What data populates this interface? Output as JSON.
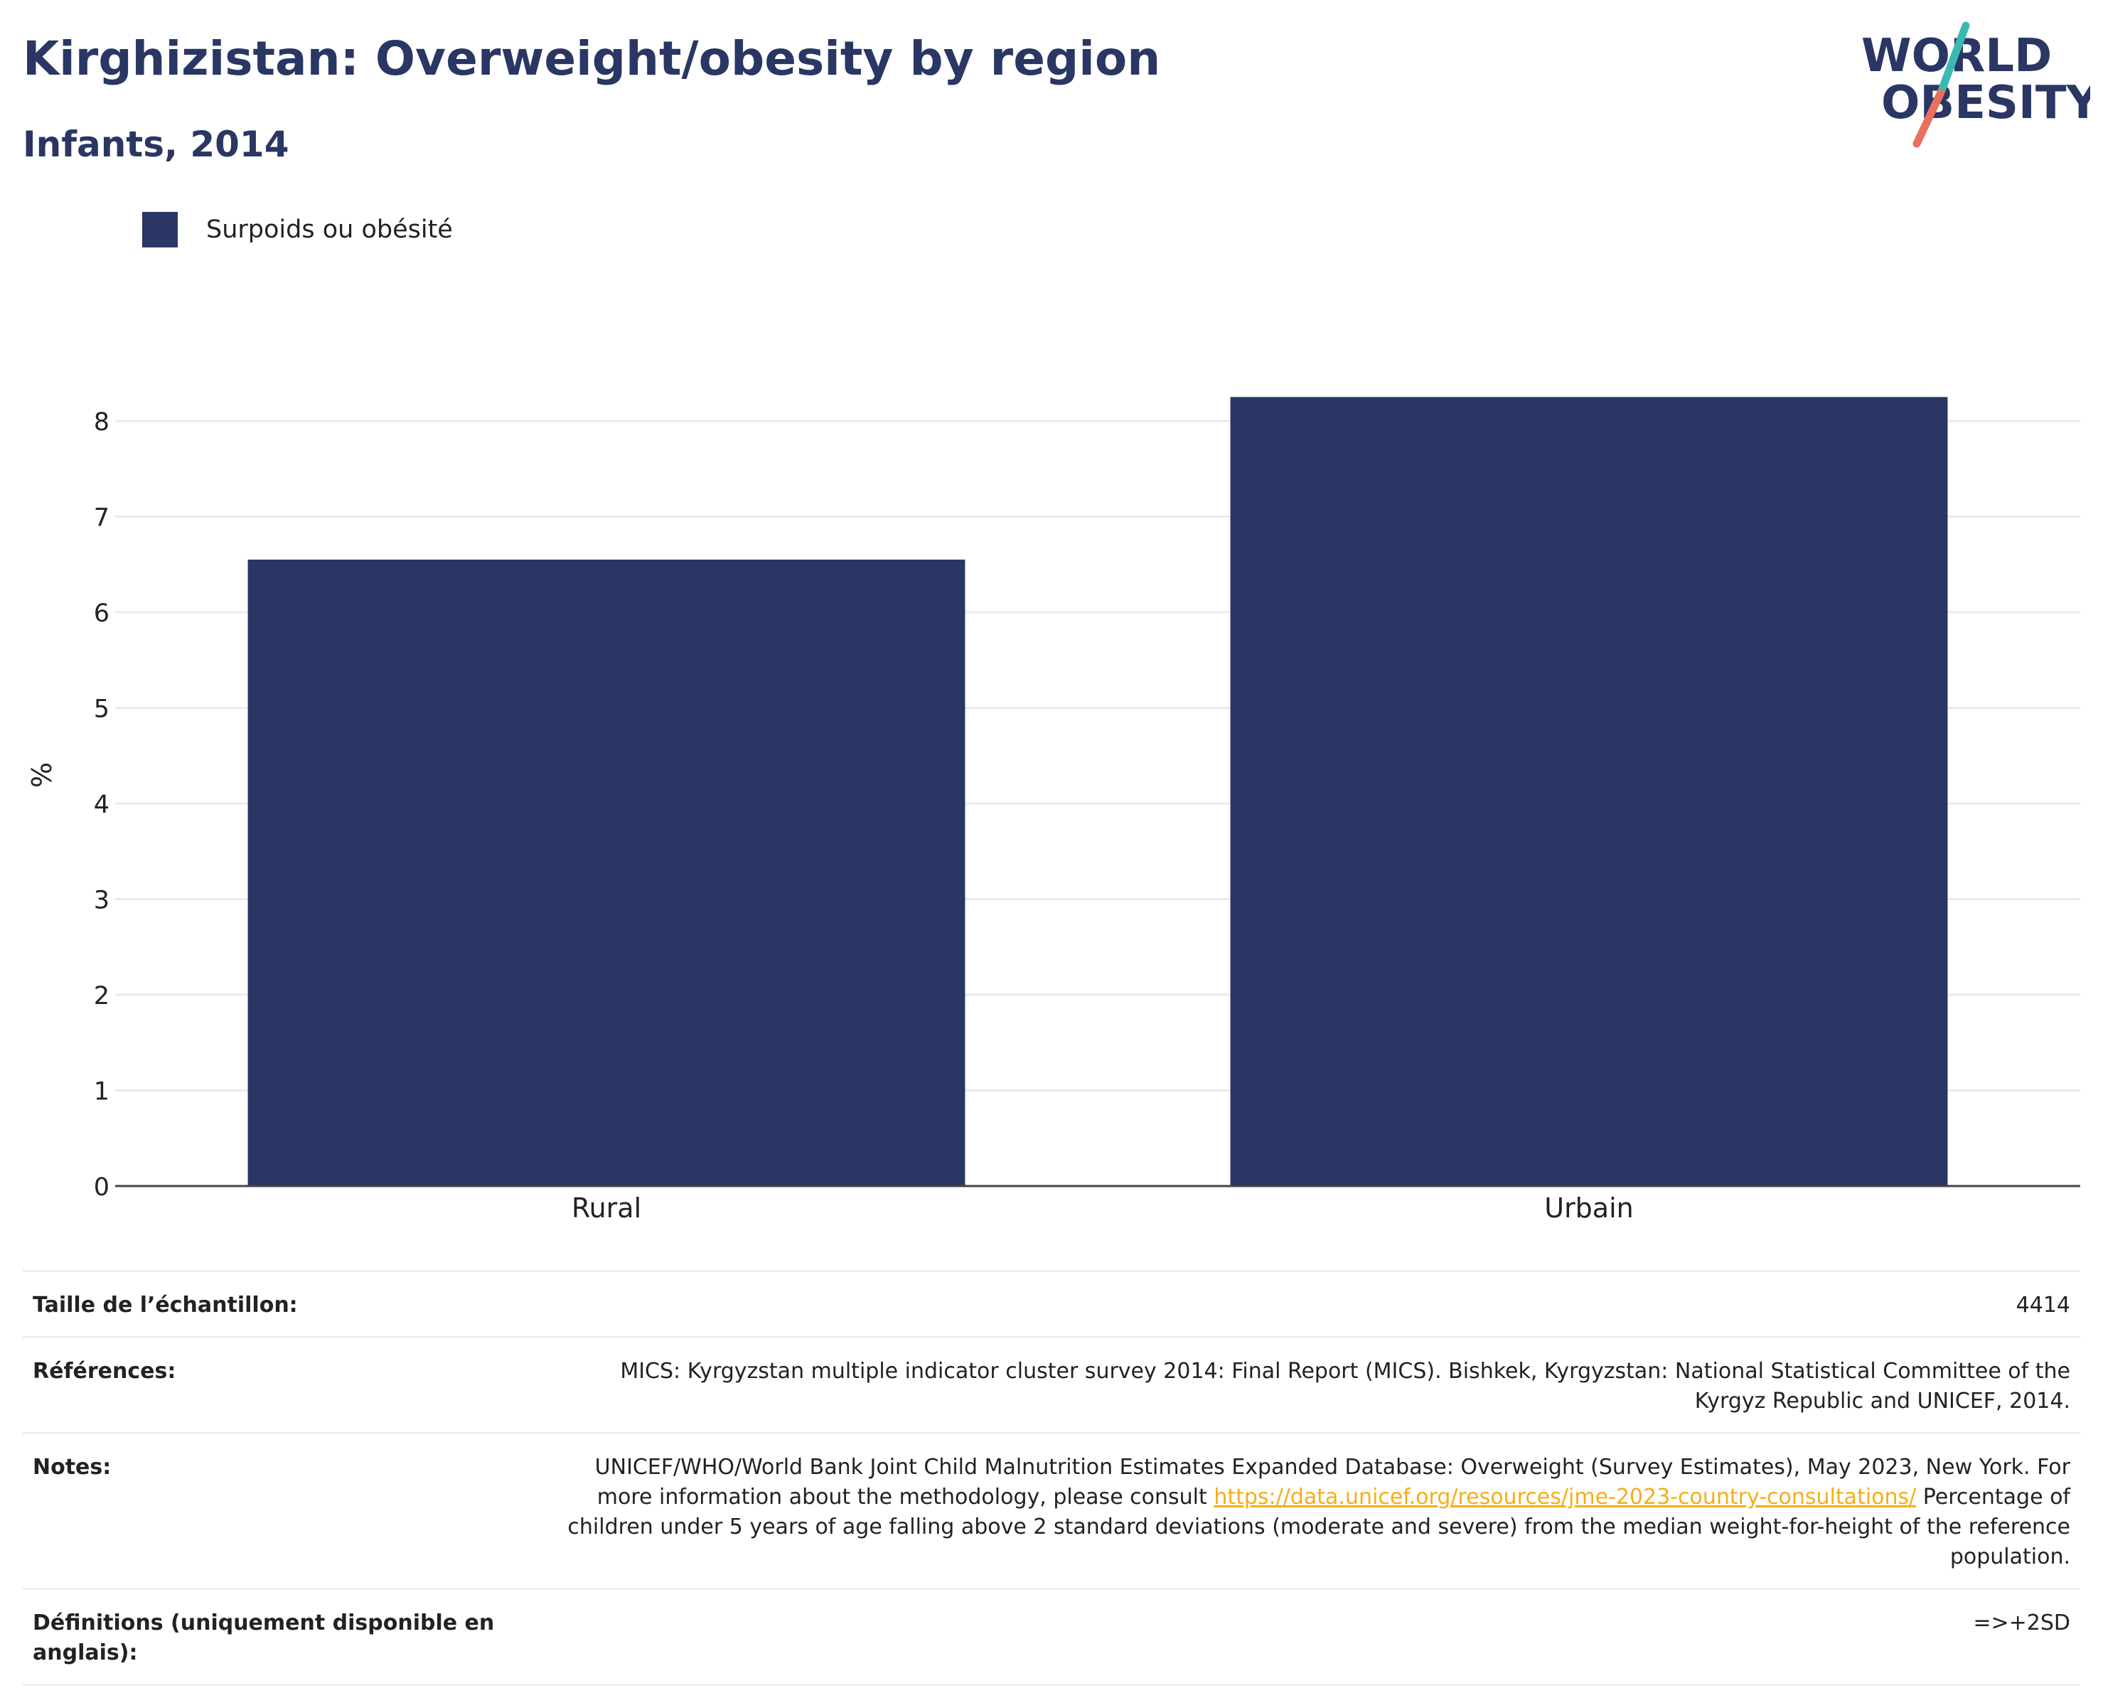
{
  "header": {
    "title": "Kirghizistan: Overweight/obesity by region",
    "subtitle": "Infants, 2014"
  },
  "logo": {
    "line1": "WORLD",
    "line2": "OBESITY",
    "colors": {
      "text": "#2a3663",
      "slash_top": "#3ab9b3",
      "slash_bottom": "#e8705c"
    }
  },
  "legend": {
    "items": [
      {
        "label": "Surpoids ou obésité",
        "color": "#2a3663"
      }
    ]
  },
  "chart_data": {
    "type": "bar",
    "categories": [
      "Rural",
      "Urbain"
    ],
    "series": [
      {
        "name": "Surpoids ou obésité",
        "values": [
          6.55,
          8.25
        ],
        "color": "#2a3663"
      }
    ],
    "title": "Kirghizistan: Overweight/obesity by region",
    "subtitle": "Infants, 2014",
    "xlabel": "",
    "ylabel": "%",
    "ylim": [
      0,
      8.6
    ],
    "yticks": [
      0,
      1,
      2,
      3,
      4,
      5,
      6,
      7,
      8
    ],
    "grid": true,
    "legend_position": "top-left"
  },
  "info": {
    "sample": {
      "key": "Taille de l’échantillon:",
      "value": "4414"
    },
    "references": {
      "key": "Références:",
      "value": "MICS: Kyrgyzstan multiple indicator cluster survey 2014: Final Report (MICS). Bishkek, Kyrgyzstan: National Statistical Committee of the Kyrgyz Republic and UNICEF, 2014."
    },
    "notes": {
      "key": "Notes:",
      "text_before": "UNICEF/WHO/World Bank Joint Child Malnutrition Estimates Expanded Database: Overweight (Survey Estimates), May 2023, New York. For more information about the methodology, please consult ",
      "link": "https://data.unicef.org/resources/jme-2023-country-consultations/",
      "text_after": " Percentage of children under 5 years of age falling above 2 standard deviations (moderate and severe) from the median weight-for-height of the reference population."
    },
    "definitions": {
      "key": "Définitions (uniquement disponible en anglais):",
      "value": "=>+2SD"
    }
  }
}
